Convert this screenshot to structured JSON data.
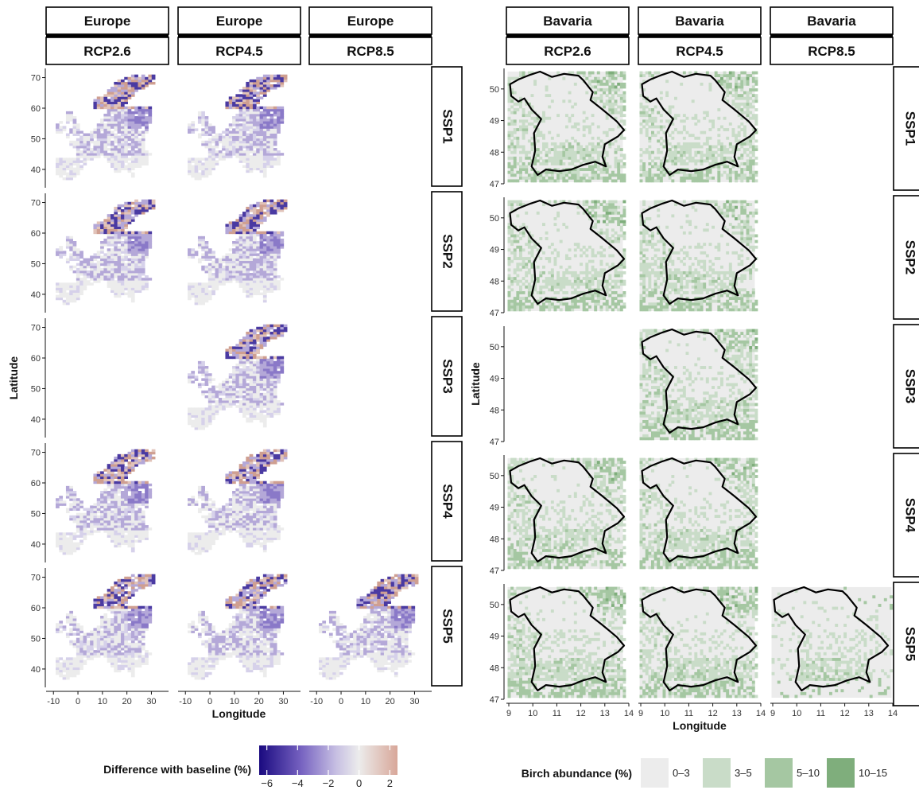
{
  "chart_data": [
    {
      "type": "heatmap",
      "panel_group": "left",
      "facet_columns": [
        {
          "region": "Europe",
          "rcp": "RCP2.6"
        },
        {
          "region": "Europe",
          "rcp": "RCP4.5"
        },
        {
          "region": "Europe",
          "rcp": "RCP8.5"
        }
      ],
      "facet_rows": [
        "SSP1",
        "SSP2",
        "SSP3",
        "SSP4",
        "SSP5"
      ],
      "panels_with_data": [
        [
          "SSP1",
          "RCP2.6"
        ],
        [
          "SSP1",
          "RCP4.5"
        ],
        [
          "SSP2",
          "RCP2.6"
        ],
        [
          "SSP2",
          "RCP4.5"
        ],
        [
          "SSP3",
          "RCP4.5"
        ],
        [
          "SSP4",
          "RCP2.6"
        ],
        [
          "SSP4",
          "RCP4.5"
        ],
        [
          "SSP5",
          "RCP2.6"
        ],
        [
          "SSP5",
          "RCP4.5"
        ],
        [
          "SSP5",
          "RCP8.5"
        ]
      ],
      "xlabel": "Longitude",
      "ylabel": "Latitude",
      "xlim": [
        -13,
        37
      ],
      "ylim": [
        34,
        73
      ],
      "xticks": [
        -10,
        0,
        10,
        20,
        30
      ],
      "yticks": [
        40,
        50,
        60,
        70
      ],
      "legend": {
        "title": "Difference with baseline (%)",
        "type": "continuous",
        "range": [
          -6.5,
          2.5
        ],
        "ticks": [
          -6,
          -4,
          -2,
          0,
          2
        ],
        "tick_labels": [
          "−6",
          "−4",
          "−2",
          "0",
          "2"
        ],
        "colors": [
          "#1a0a80",
          "#7561c0",
          "#c5bde2",
          "#ececec",
          "#d8a799"
        ],
        "position": "bottom"
      }
    },
    {
      "type": "heatmap",
      "panel_group": "right",
      "facet_columns": [
        {
          "region": "Bavaria",
          "rcp": "RCP2.6"
        },
        {
          "region": "Bavaria",
          "rcp": "RCP4.5"
        },
        {
          "region": "Bavaria",
          "rcp": "RCP8.5"
        }
      ],
      "facet_rows": [
        "SSP1",
        "SSP2",
        "SSP3",
        "SSP4",
        "SSP5"
      ],
      "panels_with_data": [
        [
          "SSP1",
          "RCP2.6"
        ],
        [
          "SSP1",
          "RCP4.5"
        ],
        [
          "SSP2",
          "RCP2.6"
        ],
        [
          "SSP2",
          "RCP4.5"
        ],
        [
          "SSP3",
          "RCP4.5"
        ],
        [
          "SSP4",
          "RCP2.6"
        ],
        [
          "SSP4",
          "RCP4.5"
        ],
        [
          "SSP5",
          "RCP2.6"
        ],
        [
          "SSP5",
          "RCP4.5"
        ],
        [
          "SSP5",
          "RCP8.5"
        ]
      ],
      "xlabel": "Longitude",
      "ylabel": "Latitude",
      "xlim": [
        8.9,
        14
      ],
      "ylim": [
        47,
        50.65
      ],
      "xticks": [
        9,
        10,
        11,
        12,
        13,
        14
      ],
      "yticks": [
        47,
        48,
        49,
        50
      ],
      "legend": {
        "title": "Birch abundance (%)",
        "type": "discrete",
        "categories": [
          "0–3",
          "3–5",
          "5–10",
          "10–15"
        ],
        "colors": [
          "#ececec",
          "#c9dcc8",
          "#a5c7a2",
          "#7fae7c"
        ],
        "position": "bottom"
      }
    }
  ]
}
